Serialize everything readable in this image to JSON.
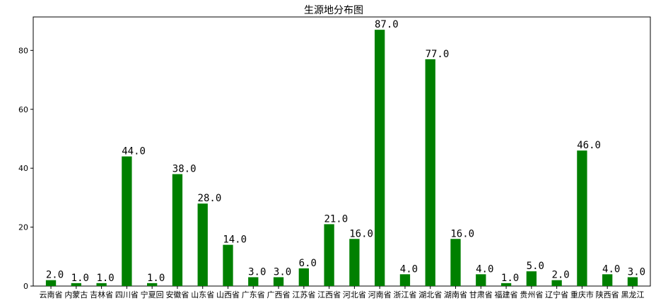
{
  "chart_data": {
    "type": "bar",
    "title": "生源地分布图",
    "xlabel": "",
    "ylabel": "",
    "ylim": [
      0,
      91.35
    ],
    "yticks": [
      0,
      20,
      40,
      60,
      80
    ],
    "grid": false,
    "bar_color": "#008000",
    "categories": [
      "云南省",
      "内蒙古",
      "吉林省",
      "四川省",
      "宁夏回",
      "安徽省",
      "山东省",
      "山西省",
      "广东省",
      "广西省",
      "江苏省",
      "江西省",
      "河北省",
      "河南省",
      "浙江省",
      "湖北省",
      "湖南省",
      "甘肃省",
      "福建省",
      "贵州省",
      "辽宁省",
      "重庆市",
      "陕西省",
      "黑龙江"
    ],
    "values": [
      2,
      1,
      1,
      44,
      1,
      38,
      28,
      14,
      3,
      3,
      6,
      21,
      16,
      87,
      4,
      77,
      16,
      4,
      1,
      5,
      2,
      46,
      4,
      3
    ],
    "data_labels": [
      "2.0",
      "1.0",
      "1.0",
      "44.0",
      "1.0",
      "38.0",
      "28.0",
      "14.0",
      "3.0",
      "3.0",
      "6.0",
      "21.0",
      "16.0",
      "87.0",
      "4.0",
      "77.0",
      "16.0",
      "4.0",
      "1.0",
      "5.0",
      "2.0",
      "46.0",
      "4.0",
      "3.0"
    ]
  }
}
